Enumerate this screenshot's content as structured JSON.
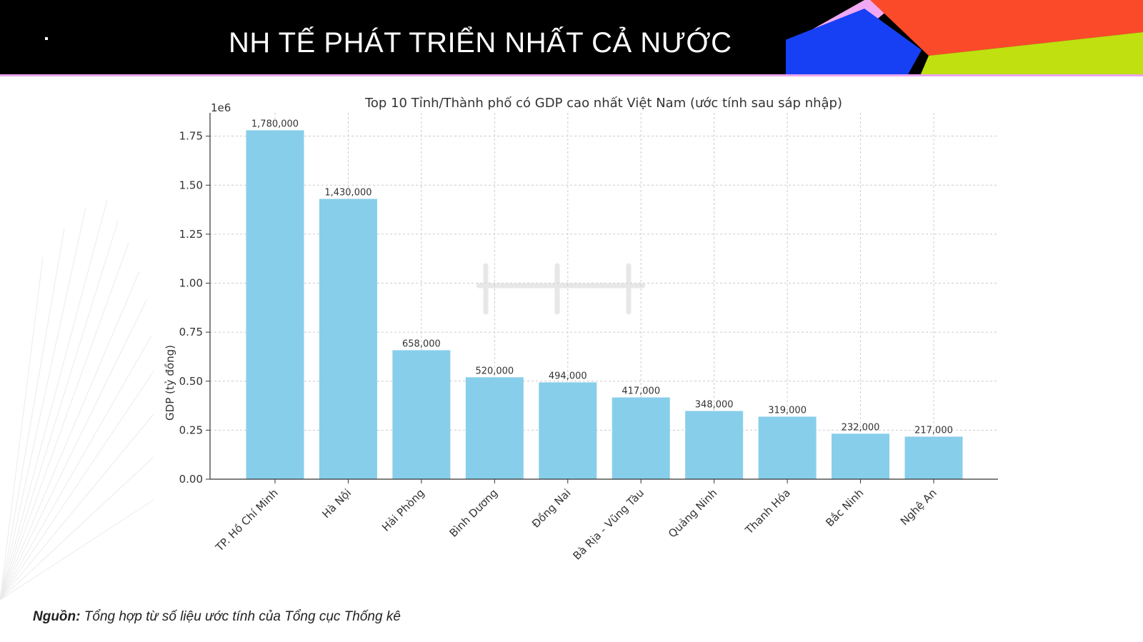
{
  "header": {
    "title": "NH TẾ PHÁT TRIỂN NHẤT CẢ NƯỚC",
    "colors": {
      "background": "#000000",
      "pink": "#f0a8f2",
      "blue": "#1740f5",
      "red": "#fb4a2a",
      "lime": "#c0e010",
      "underline": "#e9a5ee"
    }
  },
  "source": {
    "label": "Nguồn:",
    "text": "Tổng hợp từ số liệu ước tính của Tổng cục Thống kê"
  },
  "chart_data": {
    "type": "bar",
    "title": "Top 10 Tỉnh/Thành phố có GDP cao nhất Việt Nam (ước tính sau sáp nhập)",
    "xlabel": "",
    "ylabel": "GDP (tỷ đồng)",
    "y_offset_label": "1e6",
    "categories": [
      "TP. Hồ Chí Minh",
      "Hà Nội",
      "Hải Phòng",
      "Bình Dương",
      "Đồng Nai",
      "Bà Rịa - Vũng Tàu",
      "Quảng Ninh",
      "Thanh Hóa",
      "Bắc Ninh",
      "Nghệ An"
    ],
    "values": [
      1780000,
      1430000,
      658000,
      520000,
      494000,
      417000,
      348000,
      319000,
      232000,
      217000
    ],
    "value_labels": [
      "1,780,000",
      "1,430,000",
      "658,000",
      "520,000",
      "494,000",
      "417,000",
      "348,000",
      "319,000",
      "232,000",
      "217,000"
    ],
    "yticks": [
      0,
      250000,
      500000,
      750000,
      1000000,
      1250000,
      1500000,
      1750000
    ],
    "ytick_labels": [
      "0.00",
      "0.25",
      "0.50",
      "0.75",
      "1.00",
      "1.25",
      "1.50",
      "1.75"
    ],
    "ylim": [
      0,
      1869000
    ],
    "grid": true,
    "bar_color": "#87ceeb"
  }
}
